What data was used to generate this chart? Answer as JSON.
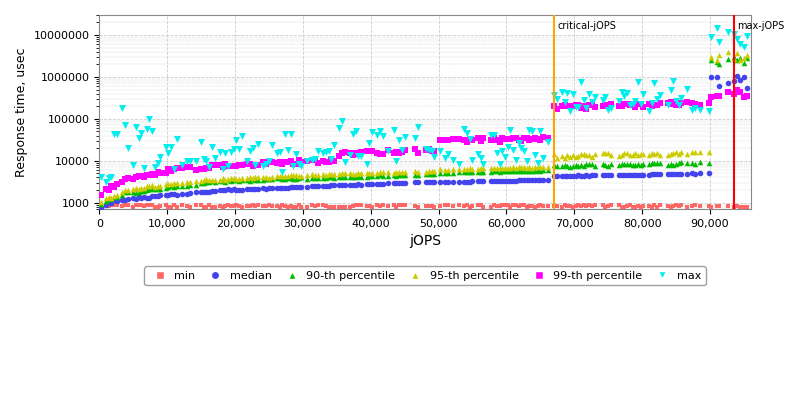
{
  "xlabel": "jOPS",
  "ylabel": "Response time, usec",
  "critical_jops": 67000,
  "max_jops": 93500,
  "critical_label": "critical-jOPS",
  "max_label": "max-jOPS",
  "critical_color": "#FFA500",
  "max_color": "#FF0000",
  "xlim": [
    0,
    96000
  ],
  "ylim_log": [
    700,
    30000000
  ],
  "grid_color": "#CCCCCC",
  "bg_color": "#FFFFFF",
  "series": {
    "min": {
      "color": "#FF6666",
      "marker": "s",
      "ms": 3,
      "label": "min"
    },
    "median": {
      "color": "#4444EE",
      "marker": "o",
      "ms": 4,
      "label": "median"
    },
    "p90": {
      "color": "#00BB00",
      "marker": "^",
      "ms": 4,
      "label": "90-th percentile"
    },
    "p95": {
      "color": "#CCCC00",
      "marker": "^",
      "ms": 4,
      "label": "95-th percentile"
    },
    "p99": {
      "color": "#FF00FF",
      "marker": "s",
      "ms": 4,
      "label": "99-th percentile"
    },
    "max": {
      "color": "#00EEEE",
      "marker": "v",
      "ms": 5,
      "label": "max"
    }
  }
}
